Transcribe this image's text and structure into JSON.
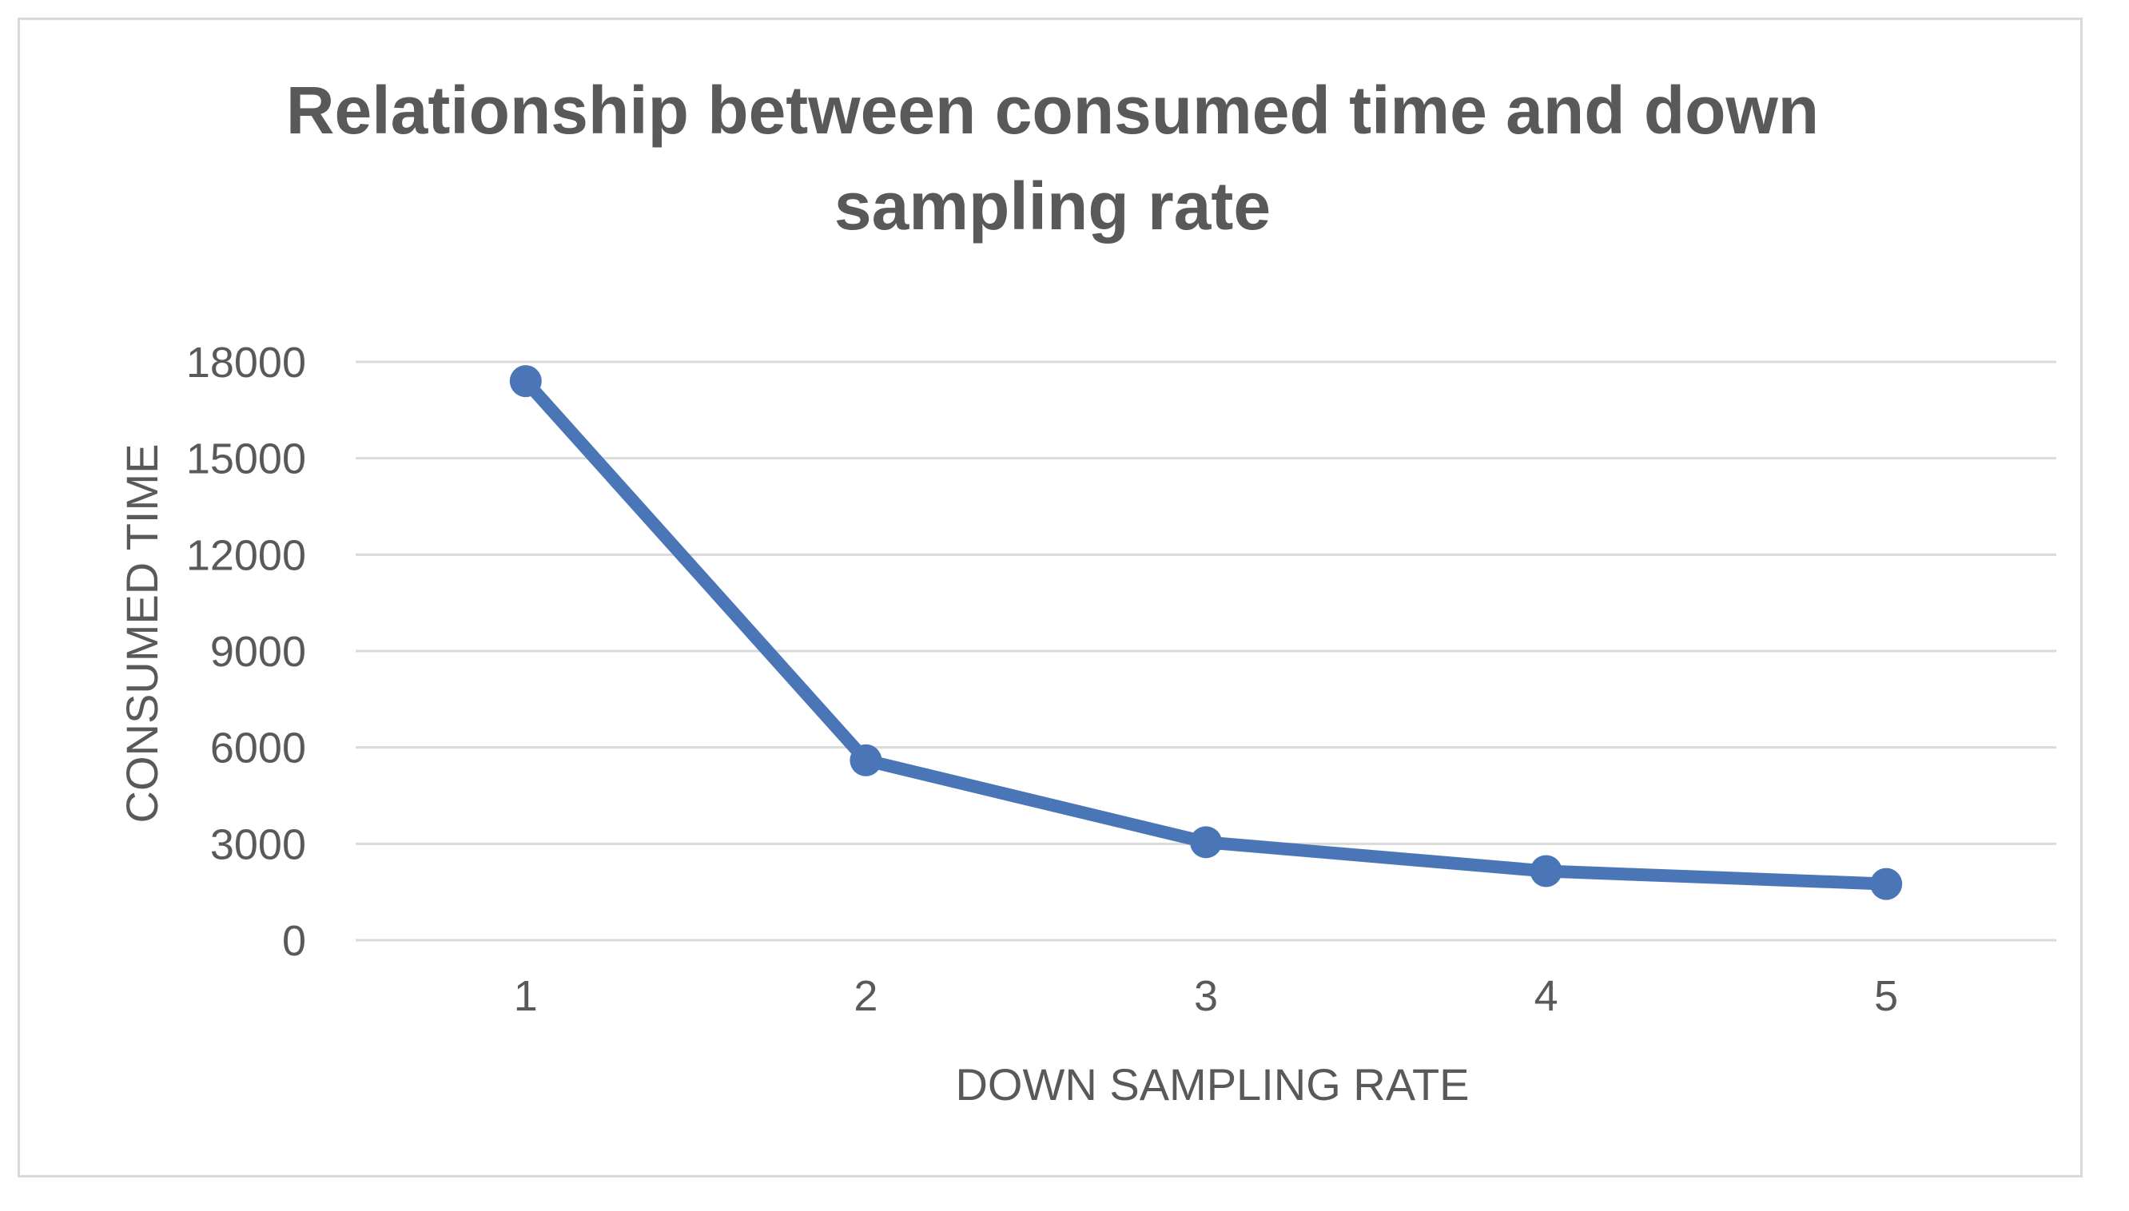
{
  "chart_data": {
    "type": "line",
    "title_lines": [
      "Relationship between consumed time and down",
      "sampling rate"
    ],
    "xlabel": "DOWN SAMPLING RATE",
    "ylabel": "CONSUMED TIME",
    "categories": [
      "1",
      "2",
      "3",
      "4",
      "5"
    ],
    "series": [
      {
        "name": "Consumed time",
        "values": [
          17400,
          5600,
          3050,
          2150,
          1750
        ],
        "color": "#4a76b8"
      }
    ],
    "ylim": [
      0,
      18000
    ],
    "yticks": [
      0,
      3000,
      6000,
      9000,
      12000,
      15000,
      18000
    ],
    "ytick_labels": [
      "0",
      "3000",
      "6000",
      "9000",
      "12000",
      "15000",
      "18000"
    ],
    "grid": true,
    "gridline_color": "#d9d9d9",
    "text_color": "#595959"
  }
}
